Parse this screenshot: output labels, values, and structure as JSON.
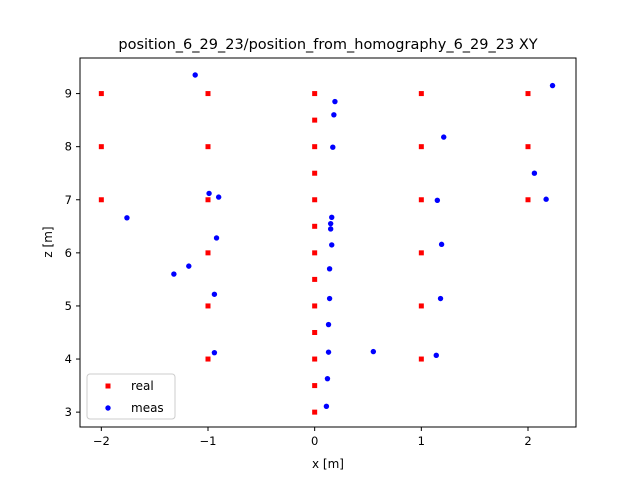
{
  "chart_data": {
    "type": "scatter",
    "title": "position_6_29_23/position_from_homography_6_29_23 XY",
    "xlabel": "x [m]",
    "ylabel": "z [m]",
    "xlim": [
      -2.2,
      2.45
    ],
    "ylim": [
      2.72,
      9.67
    ],
    "xticks": [
      -2,
      -1,
      0,
      1,
      2
    ],
    "yticks": [
      3,
      4,
      5,
      6,
      7,
      8,
      9
    ],
    "grid": false,
    "legend_position": "lower-left",
    "series": [
      {
        "name": "real",
        "color": "#ff0000",
        "marker": "square",
        "points": [
          [
            -2,
            9
          ],
          [
            -2,
            8
          ],
          [
            -2,
            7
          ],
          [
            -1,
            9
          ],
          [
            -1,
            8
          ],
          [
            -1,
            7
          ],
          [
            -1,
            6
          ],
          [
            -1,
            5
          ],
          [
            -1,
            4
          ],
          [
            0,
            9
          ],
          [
            0,
            8.5
          ],
          [
            0,
            8
          ],
          [
            0,
            7.5
          ],
          [
            0,
            7
          ],
          [
            0,
            6.5
          ],
          [
            0,
            6
          ],
          [
            0,
            5.5
          ],
          [
            0,
            5
          ],
          [
            0,
            4.5
          ],
          [
            0,
            4
          ],
          [
            0,
            3.5
          ],
          [
            0,
            3
          ],
          [
            1,
            9
          ],
          [
            1,
            8
          ],
          [
            1,
            7
          ],
          [
            1,
            6
          ],
          [
            1,
            5
          ],
          [
            1,
            4
          ],
          [
            2,
            9
          ],
          [
            2,
            8
          ],
          [
            2,
            7
          ]
        ]
      },
      {
        "name": "meas",
        "color": "#0000ff",
        "marker": "circle",
        "points": [
          [
            -1.12,
            9.35
          ],
          [
            2.23,
            9.15
          ],
          [
            0.19,
            8.85
          ],
          [
            0.18,
            8.6
          ],
          [
            1.21,
            8.18
          ],
          [
            0.17,
            7.99
          ],
          [
            2.06,
            7.5
          ],
          [
            -0.99,
            7.12
          ],
          [
            -0.9,
            7.05
          ],
          [
            1.15,
            6.99
          ],
          [
            2.17,
            7.01
          ],
          [
            -1.76,
            6.66
          ],
          [
            0.16,
            6.67
          ],
          [
            0.15,
            6.55
          ],
          [
            0.15,
            6.45
          ],
          [
            -0.92,
            6.28
          ],
          [
            0.16,
            6.15
          ],
          [
            1.19,
            6.16
          ],
          [
            -1.18,
            5.75
          ],
          [
            -1.32,
            5.6
          ],
          [
            0.14,
            5.7
          ],
          [
            -0.94,
            5.22
          ],
          [
            0.14,
            5.14
          ],
          [
            1.18,
            5.14
          ],
          [
            0.13,
            4.65
          ],
          [
            0.13,
            4.13
          ],
          [
            0.55,
            4.14
          ],
          [
            -0.94,
            4.12
          ],
          [
            1.14,
            4.07
          ],
          [
            0.12,
            3.63
          ],
          [
            0.11,
            3.11
          ]
        ]
      }
    ]
  }
}
